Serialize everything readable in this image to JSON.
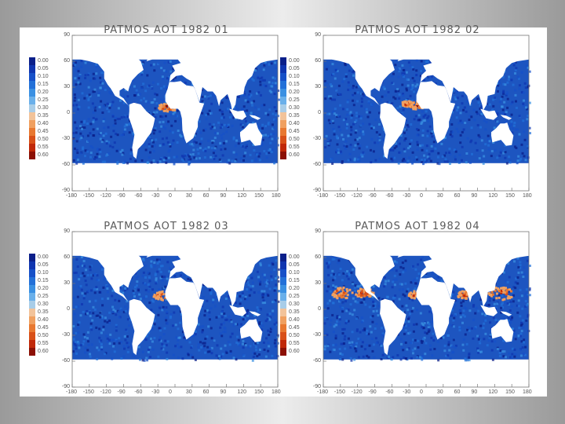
{
  "panels": [
    {
      "title": "PATMOS AOT 1982 01",
      "hotspots": [
        {
          "lon": -15,
          "lat": 8,
          "r": 10
        }
      ]
    },
    {
      "title": "PATMOS AOT 1982 02",
      "hotspots": [
        {
          "lon": -20,
          "lat": 10,
          "r": 9
        },
        {
          "lon": -35,
          "lat": 12,
          "r": 6
        }
      ]
    },
    {
      "title": "PATMOS AOT 1982 03",
      "hotspots": [
        {
          "lon": -25,
          "lat": 17,
          "r": 9
        }
      ]
    },
    {
      "title": "PATMOS AOT 1982 04",
      "hotspots": [
        {
          "lon": -150,
          "lat": 20,
          "r": 12
        },
        {
          "lon": -110,
          "lat": 20,
          "r": 10
        },
        {
          "lon": -20,
          "lat": 18,
          "r": 8
        },
        {
          "lon": 65,
          "lat": 18,
          "r": 8
        },
        {
          "lon": 130,
          "lat": 20,
          "r": 14
        }
      ]
    }
  ],
  "chart_data": {
    "type": "heatmap",
    "x_ticks": [
      "-180",
      "-150",
      "-120",
      "-90",
      "-60",
      "-30",
      "0",
      "30",
      "60",
      "90",
      "120",
      "150",
      "180"
    ],
    "y_ticks": [
      "90",
      "60",
      "30",
      "0",
      "-30",
      "-60",
      "-90"
    ],
    "xlim": [
      -180,
      180
    ],
    "ylim": [
      -90,
      90
    ],
    "colorbar": {
      "labels": [
        "0.00",
        "0.05",
        "0.10",
        "0.15",
        "0.20",
        "0.25",
        "0.30",
        "0.35",
        "0.40",
        "0.45",
        "0.50",
        "0.55",
        "0.60"
      ],
      "colors": [
        "#0a1f8a",
        "#0f35b0",
        "#1650c8",
        "#2270d8",
        "#3a90e2",
        "#6ab0ea",
        "#a8cde8",
        "#f2c39a",
        "#f0a060",
        "#e87830",
        "#d85018",
        "#c02808",
        "#8c1004"
      ]
    },
    "ocean_color": "#1d55c0",
    "land_color": "#ffffff"
  }
}
